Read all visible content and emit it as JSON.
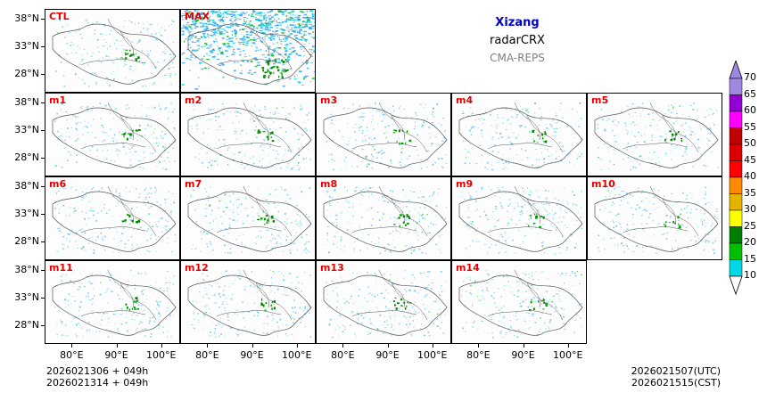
{
  "title": {
    "region": "Xizang",
    "variable": "radarCRX",
    "model": "CMA-REPS"
  },
  "panels": [
    {
      "label": "CTL",
      "row": 0,
      "col": 0
    },
    {
      "label": "MAX",
      "row": 0,
      "col": 1
    },
    {
      "label": "m1",
      "row": 1,
      "col": 0
    },
    {
      "label": "m2",
      "row": 1,
      "col": 1
    },
    {
      "label": "m3",
      "row": 1,
      "col": 2
    },
    {
      "label": "m4",
      "row": 1,
      "col": 3
    },
    {
      "label": "m5",
      "row": 1,
      "col": 4
    },
    {
      "label": "m6",
      "row": 2,
      "col": 0
    },
    {
      "label": "m7",
      "row": 2,
      "col": 1
    },
    {
      "label": "m8",
      "row": 2,
      "col": 2
    },
    {
      "label": "m9",
      "row": 2,
      "col": 3
    },
    {
      "label": "m10",
      "row": 2,
      "col": 4
    },
    {
      "label": "m11",
      "row": 3,
      "col": 0
    },
    {
      "label": "m12",
      "row": 3,
      "col": 1
    },
    {
      "label": "m13",
      "row": 3,
      "col": 2
    },
    {
      "label": "m14",
      "row": 3,
      "col": 3
    }
  ],
  "lat_ticks": [
    "38°N",
    "33°N",
    "28°N"
  ],
  "lon_ticks": [
    "80°E",
    "90°E",
    "100°E"
  ],
  "footer_left": {
    "line1": "2026021306  +  049h",
    "line2": "2026021314  +  049h"
  },
  "footer_right": {
    "line1": "2026021507(UTC)",
    "line2": "2026021515(CST)"
  },
  "colorbar": {
    "levels": [
      "10",
      "15",
      "20",
      "25",
      "30",
      "35",
      "40",
      "45",
      "50",
      "55",
      "60",
      "65",
      "70"
    ],
    "colors": [
      "#1e90ff",
      "#00d8e8",
      "#00c000",
      "#008000",
      "#ffff00",
      "#e6b400",
      "#ff8c00",
      "#ff0000",
      "#dd0000",
      "#c00000",
      "#ff00ff",
      "#9400d3",
      "#9e88e0"
    ],
    "under_color": "#ffffff",
    "over_color": "#9e88e0"
  }
}
